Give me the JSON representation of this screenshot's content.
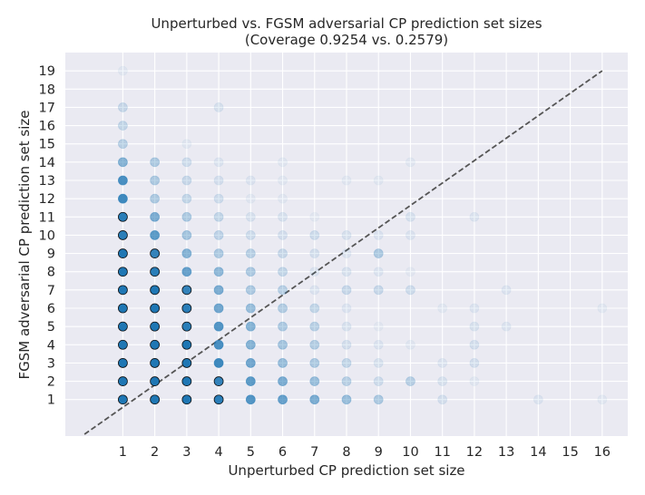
{
  "chart_data": {
    "type": "scatter",
    "title": "Unperturbed vs. FGSM adversarial CP prediction set sizes",
    "subtitle": "(Coverage 0.9254 vs. 0.2579)",
    "xlabel": "Unperturbed CP prediction set size",
    "ylabel": "FGSM adversarial CP prediction set size",
    "xlim": [
      -0.8,
      16.8
    ],
    "ylim": [
      -1.0,
      20.0
    ],
    "x_ticks": [
      1,
      2,
      3,
      4,
      5,
      6,
      7,
      8,
      9,
      10,
      11,
      12,
      13,
      14,
      15,
      16
    ],
    "y_ticks": [
      1,
      2,
      3,
      4,
      5,
      6,
      7,
      8,
      9,
      10,
      11,
      12,
      13,
      14,
      15,
      16,
      17,
      18,
      19
    ],
    "grid": true,
    "background": "#eaeaf2",
    "point_color": "#1f77b4",
    "diagonal": {
      "from": [
        -0.2,
        -0.9
      ],
      "to": [
        16.0,
        19.0
      ],
      "color": "#555555",
      "style": "dashed"
    },
    "points": [
      {
        "x": 1,
        "y": 1,
        "a": 1
      },
      {
        "x": 1,
        "y": 2,
        "a": 1
      },
      {
        "x": 1,
        "y": 3,
        "a": 1
      },
      {
        "x": 1,
        "y": 4,
        "a": 1
      },
      {
        "x": 1,
        "y": 5,
        "a": 1
      },
      {
        "x": 1,
        "y": 6,
        "a": 1
      },
      {
        "x": 1,
        "y": 7,
        "a": 1
      },
      {
        "x": 1,
        "y": 8,
        "a": 1
      },
      {
        "x": 1,
        "y": 9,
        "a": 1
      },
      {
        "x": 1,
        "y": 10,
        "a": 0.95
      },
      {
        "x": 1,
        "y": 11,
        "a": 0.95
      },
      {
        "x": 1,
        "y": 12,
        "a": 0.85
      },
      {
        "x": 1,
        "y": 13,
        "a": 0.8
      },
      {
        "x": 1,
        "y": 14,
        "a": 0.5
      },
      {
        "x": 1,
        "y": 15,
        "a": 0.25
      },
      {
        "x": 1,
        "y": 16,
        "a": 0.2
      },
      {
        "x": 1,
        "y": 17,
        "a": 0.18
      },
      {
        "x": 1,
        "y": 19,
        "a": 0.06
      },
      {
        "x": 2,
        "y": 1,
        "a": 1
      },
      {
        "x": 2,
        "y": 2,
        "a": 1
      },
      {
        "x": 2,
        "y": 3,
        "a": 1
      },
      {
        "x": 2,
        "y": 4,
        "a": 1
      },
      {
        "x": 2,
        "y": 5,
        "a": 1
      },
      {
        "x": 2,
        "y": 6,
        "a": 1
      },
      {
        "x": 2,
        "y": 7,
        "a": 1
      },
      {
        "x": 2,
        "y": 8,
        "a": 0.95
      },
      {
        "x": 2,
        "y": 9,
        "a": 0.9
      },
      {
        "x": 2,
        "y": 10,
        "a": 0.7
      },
      {
        "x": 2,
        "y": 11,
        "a": 0.55
      },
      {
        "x": 2,
        "y": 12,
        "a": 0.3
      },
      {
        "x": 2,
        "y": 13,
        "a": 0.3
      },
      {
        "x": 2,
        "y": 14,
        "a": 0.3
      },
      {
        "x": 3,
        "y": 1,
        "a": 1
      },
      {
        "x": 3,
        "y": 2,
        "a": 1
      },
      {
        "x": 3,
        "y": 3,
        "a": 1
      },
      {
        "x": 3,
        "y": 4,
        "a": 1
      },
      {
        "x": 3,
        "y": 5,
        "a": 0.95
      },
      {
        "x": 3,
        "y": 6,
        "a": 0.95
      },
      {
        "x": 3,
        "y": 7,
        "a": 0.9
      },
      {
        "x": 3,
        "y": 8,
        "a": 0.65
      },
      {
        "x": 3,
        "y": 9,
        "a": 0.5
      },
      {
        "x": 3,
        "y": 10,
        "a": 0.35
      },
      {
        "x": 3,
        "y": 11,
        "a": 0.3
      },
      {
        "x": 3,
        "y": 12,
        "a": 0.2
      },
      {
        "x": 3,
        "y": 13,
        "a": 0.18
      },
      {
        "x": 3,
        "y": 14,
        "a": 0.15
      },
      {
        "x": 3,
        "y": 15,
        "a": 0.06
      },
      {
        "x": 4,
        "y": 1,
        "a": 0.95
      },
      {
        "x": 4,
        "y": 2,
        "a": 0.9
      },
      {
        "x": 4,
        "y": 3,
        "a": 0.85
      },
      {
        "x": 4,
        "y": 4,
        "a": 0.8
      },
      {
        "x": 4,
        "y": 5,
        "a": 0.75
      },
      {
        "x": 4,
        "y": 6,
        "a": 0.6
      },
      {
        "x": 4,
        "y": 7,
        "a": 0.55
      },
      {
        "x": 4,
        "y": 8,
        "a": 0.45
      },
      {
        "x": 4,
        "y": 9,
        "a": 0.3
      },
      {
        "x": 4,
        "y": 10,
        "a": 0.22
      },
      {
        "x": 4,
        "y": 11,
        "a": 0.2
      },
      {
        "x": 4,
        "y": 12,
        "a": 0.15
      },
      {
        "x": 4,
        "y": 13,
        "a": 0.12
      },
      {
        "x": 4,
        "y": 14,
        "a": 0.08
      },
      {
        "x": 4,
        "y": 17,
        "a": 0.1
      },
      {
        "x": 5,
        "y": 1,
        "a": 0.75
      },
      {
        "x": 5,
        "y": 2,
        "a": 0.7
      },
      {
        "x": 5,
        "y": 3,
        "a": 0.6
      },
      {
        "x": 5,
        "y": 4,
        "a": 0.5
      },
      {
        "x": 5,
        "y": 5,
        "a": 0.5
      },
      {
        "x": 5,
        "y": 6,
        "a": 0.4
      },
      {
        "x": 5,
        "y": 7,
        "a": 0.3
      },
      {
        "x": 5,
        "y": 8,
        "a": 0.3
      },
      {
        "x": 5,
        "y": 9,
        "a": 0.25
      },
      {
        "x": 5,
        "y": 10,
        "a": 0.15
      },
      {
        "x": 5,
        "y": 11,
        "a": 0.1
      },
      {
        "x": 5,
        "y": 12,
        "a": 0.06
      },
      {
        "x": 5,
        "y": 13,
        "a": 0.08
      },
      {
        "x": 6,
        "y": 1,
        "a": 0.65
      },
      {
        "x": 6,
        "y": 2,
        "a": 0.55
      },
      {
        "x": 6,
        "y": 3,
        "a": 0.4
      },
      {
        "x": 6,
        "y": 4,
        "a": 0.35
      },
      {
        "x": 6,
        "y": 5,
        "a": 0.3
      },
      {
        "x": 6,
        "y": 6,
        "a": 0.28
      },
      {
        "x": 6,
        "y": 7,
        "a": 0.25
      },
      {
        "x": 6,
        "y": 8,
        "a": 0.2
      },
      {
        "x": 6,
        "y": 9,
        "a": 0.18
      },
      {
        "x": 6,
        "y": 10,
        "a": 0.12
      },
      {
        "x": 6,
        "y": 11,
        "a": 0.1
      },
      {
        "x": 6,
        "y": 12,
        "a": 0.06
      },
      {
        "x": 6,
        "y": 13,
        "a": 0.06
      },
      {
        "x": 6,
        "y": 14,
        "a": 0.06
      },
      {
        "x": 7,
        "y": 1,
        "a": 0.55
      },
      {
        "x": 7,
        "y": 2,
        "a": 0.4
      },
      {
        "x": 7,
        "y": 3,
        "a": 0.3
      },
      {
        "x": 7,
        "y": 4,
        "a": 0.28
      },
      {
        "x": 7,
        "y": 5,
        "a": 0.25
      },
      {
        "x": 7,
        "y": 6,
        "a": 0.2
      },
      {
        "x": 7,
        "y": 7,
        "a": 0.08
      },
      {
        "x": 7,
        "y": 8,
        "a": 0.08
      },
      {
        "x": 7,
        "y": 9,
        "a": 0.12
      },
      {
        "x": 7,
        "y": 10,
        "a": 0.15
      },
      {
        "x": 7,
        "y": 11,
        "a": 0.05
      },
      {
        "x": 8,
        "y": 1,
        "a": 0.4
      },
      {
        "x": 8,
        "y": 2,
        "a": 0.25
      },
      {
        "x": 8,
        "y": 3,
        "a": 0.2
      },
      {
        "x": 8,
        "y": 4,
        "a": 0.12
      },
      {
        "x": 8,
        "y": 5,
        "a": 0.1
      },
      {
        "x": 8,
        "y": 6,
        "a": 0.08
      },
      {
        "x": 8,
        "y": 7,
        "a": 0.18
      },
      {
        "x": 8,
        "y": 8,
        "a": 0.1
      },
      {
        "x": 8,
        "y": 9,
        "a": 0.08
      },
      {
        "x": 8,
        "y": 10,
        "a": 0.1
      },
      {
        "x": 8,
        "y": 13,
        "a": 0.06
      },
      {
        "x": 9,
        "y": 1,
        "a": 0.3
      },
      {
        "x": 9,
        "y": 2,
        "a": 0.15
      },
      {
        "x": 9,
        "y": 3,
        "a": 0.1
      },
      {
        "x": 9,
        "y": 4,
        "a": 0.08
      },
      {
        "x": 9,
        "y": 5,
        "a": 0.05
      },
      {
        "x": 9,
        "y": 7,
        "a": 0.18
      },
      {
        "x": 9,
        "y": 8,
        "a": 0.08
      },
      {
        "x": 9,
        "y": 9,
        "a": 0.3
      },
      {
        "x": 9,
        "y": 10,
        "a": 0.08
      },
      {
        "x": 9,
        "y": 13,
        "a": 0.06
      },
      {
        "x": 10,
        "y": 2,
        "a": 0.25
      },
      {
        "x": 10,
        "y": 4,
        "a": 0.06
      },
      {
        "x": 10,
        "y": 7,
        "a": 0.15
      },
      {
        "x": 10,
        "y": 8,
        "a": 0.05
      },
      {
        "x": 10,
        "y": 10,
        "a": 0.08
      },
      {
        "x": 10,
        "y": 11,
        "a": 0.1
      },
      {
        "x": 10,
        "y": 14,
        "a": 0.06
      },
      {
        "x": 11,
        "y": 1,
        "a": 0.12
      },
      {
        "x": 11,
        "y": 2,
        "a": 0.1
      },
      {
        "x": 11,
        "y": 3,
        "a": 0.08
      },
      {
        "x": 11,
        "y": 6,
        "a": 0.06
      },
      {
        "x": 12,
        "y": 2,
        "a": 0.06
      },
      {
        "x": 12,
        "y": 3,
        "a": 0.12
      },
      {
        "x": 12,
        "y": 4,
        "a": 0.12
      },
      {
        "x": 12,
        "y": 5,
        "a": 0.1
      },
      {
        "x": 12,
        "y": 6,
        "a": 0.08
      },
      {
        "x": 12,
        "y": 11,
        "a": 0.08
      },
      {
        "x": 13,
        "y": 5,
        "a": 0.08
      },
      {
        "x": 13,
        "y": 7,
        "a": 0.08
      },
      {
        "x": 14,
        "y": 1,
        "a": 0.08
      },
      {
        "x": 16,
        "y": 1,
        "a": 0.06
      },
      {
        "x": 16,
        "y": 6,
        "a": 0.06
      }
    ]
  }
}
